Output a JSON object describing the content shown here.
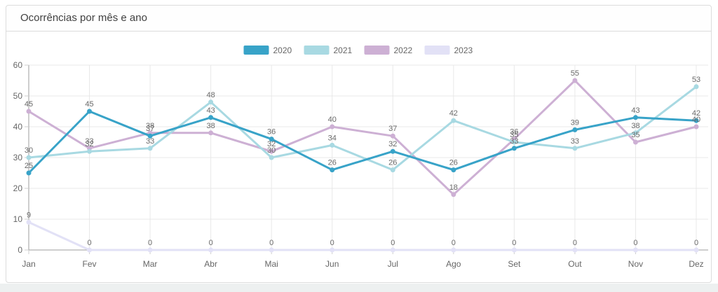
{
  "panel": {
    "title": "Ocorrências por mês e ano"
  },
  "chart_data": {
    "type": "line",
    "title": "Ocorrências por mês e ano",
    "xlabel": "",
    "ylabel": "",
    "categories": [
      "Jan",
      "Fev",
      "Mar",
      "Abr",
      "Mai",
      "Jun",
      "Jul",
      "Ago",
      "Set",
      "Out",
      "Nov",
      "Dez"
    ],
    "series": [
      {
        "name": "2020",
        "color": "#38a3c8",
        "values": [
          25,
          45,
          37,
          43,
          36,
          26,
          32,
          26,
          33,
          39,
          43,
          42
        ]
      },
      {
        "name": "2021",
        "color": "#a8d9e2",
        "values": [
          30,
          32,
          33,
          48,
          30,
          34,
          26,
          42,
          35,
          33,
          38,
          53
        ]
      },
      {
        "name": "2022",
        "color": "#cdb0d4",
        "values": [
          45,
          33,
          38,
          38,
          32,
          40,
          37,
          18,
          36,
          55,
          35,
          40
        ]
      },
      {
        "name": "2023",
        "color": "#e2e1f6",
        "values": [
          9,
          0,
          0,
          0,
          0,
          0,
          0,
          0,
          0,
          0,
          0,
          0
        ]
      }
    ],
    "ylim": [
      0,
      60
    ],
    "yticks": [
      0,
      10,
      20,
      30,
      40,
      50,
      60
    ],
    "grid": true,
    "legend_position": "top",
    "colors": {
      "grid_line": "#e8e8e8",
      "axis_line": "#9e9e9e",
      "tick_stub": "#cfcfcf",
      "tick_text": "#666666",
      "data_label_text": "#6a6a6a",
      "legend_text": "#666666"
    }
  }
}
